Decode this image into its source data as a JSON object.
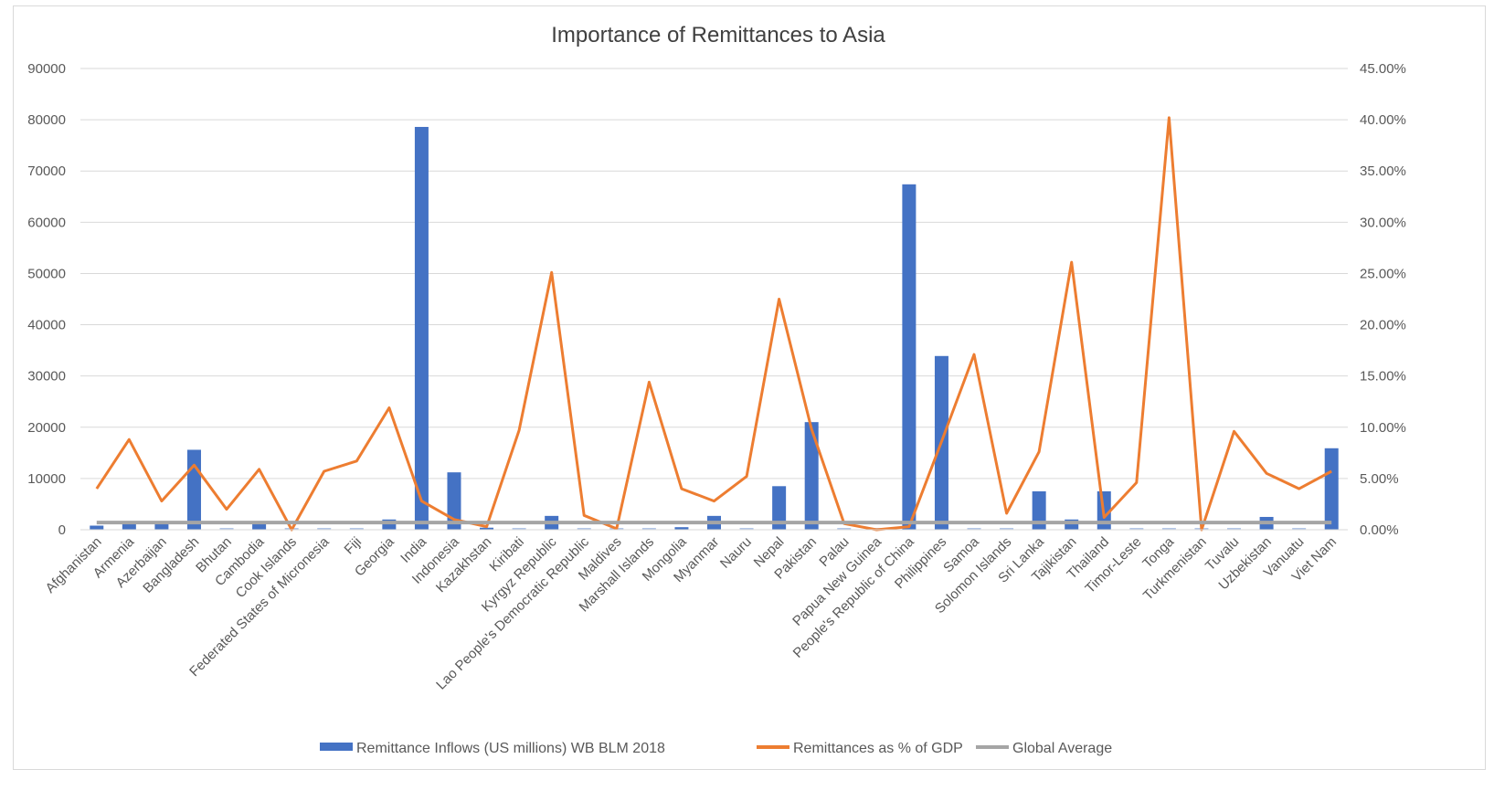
{
  "chart_data": {
    "type": "bar",
    "title": "Importance of Remittances to Asia",
    "categories": [
      "Afghanistan",
      "Armenia",
      "Azerbaijan",
      "Bangladesh",
      "Bhutan",
      "Cambodia",
      "Cook Islands",
      "Federated States of Micronesia",
      "Fiji",
      "Georgia",
      "India",
      "Indonesia",
      "Kazakhstan",
      "Kiribati",
      "Kyrgyz Republic",
      "Lao People's Democratic Republic",
      "Maldives",
      "Marshall Islands",
      "Mongolia",
      "Myanmar",
      "Nauru",
      "Nepal",
      "Pakistan",
      "Palau",
      "Papua New Guinea",
      "People's Republic of China",
      "Philippines",
      "Samoa",
      "Solomon Islands",
      "Sri Lanka",
      "Tajikistan",
      "Thailand",
      "Timor-Leste",
      "Tonga",
      "Turkmenistan",
      "Tuvalu",
      "Uzbekistan",
      "Vanuatu",
      "Viet Nam"
    ],
    "y_left": {
      "ticks": [
        "0",
        "10000",
        "20000",
        "30000",
        "40000",
        "50000",
        "60000",
        "70000",
        "80000",
        "90000"
      ],
      "ylim": [
        0,
        90000
      ]
    },
    "y_right": {
      "ticks": [
        "0.00%",
        "5.00%",
        "10.00%",
        "15.00%",
        "20.00%",
        "25.00%",
        "30.00%",
        "35.00%",
        "40.00%",
        "45.00%"
      ],
      "ylim": [
        0,
        45
      ]
    },
    "series": [
      {
        "name": "Remittance Inflows (US millions) WB BLM 2018",
        "kind": "bar",
        "axis": "left",
        "color": "#4472c4",
        "values": [
          800,
          1500,
          1300,
          15600,
          60,
          1500,
          0,
          50,
          290,
          2000,
          78600,
          11200,
          400,
          20,
          2700,
          300,
          5,
          30,
          500,
          2700,
          30,
          8500,
          21000,
          5,
          10,
          67400,
          33900,
          150,
          20,
          7500,
          2000,
          7500,
          100,
          200,
          0,
          10,
          2500,
          100,
          15900
        ]
      },
      {
        "name": "Remittances as % of GDP",
        "kind": "line",
        "axis": "right",
        "color": "#ed7d31",
        "values": [
          4.0,
          8.8,
          2.8,
          6.3,
          2.0,
          5.9,
          0.0,
          5.7,
          6.7,
          11.9,
          2.8,
          1.0,
          0.3,
          9.7,
          25.1,
          1.4,
          0.1,
          14.4,
          4.0,
          2.8,
          5.2,
          22.5,
          9.8,
          0.6,
          0.0,
          0.3,
          8.6,
          17.1,
          1.6,
          7.6,
          26.1,
          1.2,
          4.6,
          40.2,
          0.0,
          9.6,
          5.5,
          4.0,
          5.7
        ]
      },
      {
        "name": "Global Average",
        "kind": "line",
        "axis": "right",
        "color": "#a5a5a5",
        "values": [
          0.7,
          0.7,
          0.7,
          0.7,
          0.7,
          0.7,
          0.7,
          0.7,
          0.7,
          0.7,
          0.7,
          0.7,
          0.7,
          0.7,
          0.7,
          0.7,
          0.7,
          0.7,
          0.7,
          0.7,
          0.7,
          0.7,
          0.7,
          0.7,
          0.7,
          0.7,
          0.7,
          0.7,
          0.7,
          0.7,
          0.7,
          0.7,
          0.7,
          0.7,
          0.7,
          0.7,
          0.7,
          0.7,
          0.7
        ]
      }
    ],
    "legend_position": "bottom",
    "grid": true
  }
}
